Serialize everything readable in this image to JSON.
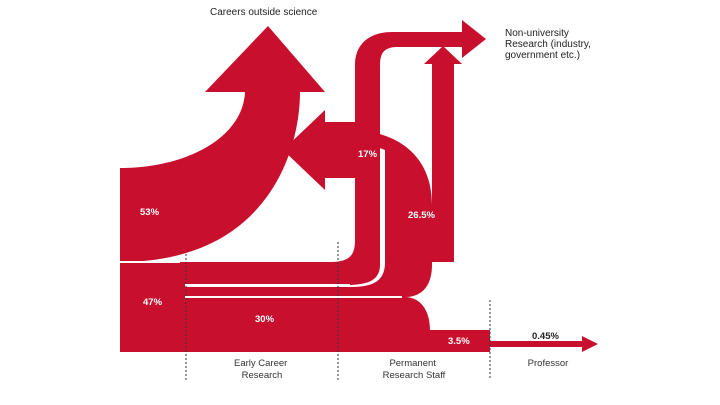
{
  "colors": {
    "flow": "#c8102e",
    "text": "#222222",
    "divider": "#333333"
  },
  "labels": {
    "careers_outside": "Careers outside science",
    "non_university": [
      "Non-university",
      "Research (industry,",
      "government etc.)"
    ]
  },
  "percentages": {
    "outside_from_early": "53%",
    "stay_after_early": "47%",
    "to_permanent": "30%",
    "outside_from_permanent": "17%",
    "non_university_from_permanent": "26.5%",
    "to_professor": "3.5%",
    "professor_final": "0.45%"
  },
  "stages": {
    "early": [
      "Early Career",
      "Research"
    ],
    "permanent": [
      "Permanent",
      "Research Staff"
    ],
    "professor": [
      "Professor"
    ]
  }
}
